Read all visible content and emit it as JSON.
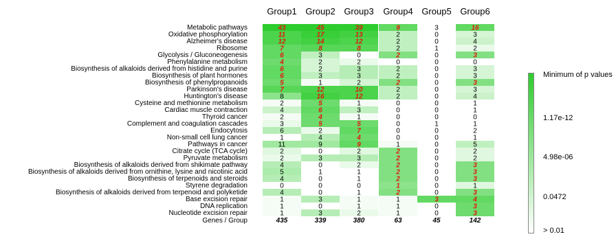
{
  "chart_data": {
    "type": "heatmap",
    "columns": [
      "Group1",
      "Group2",
      "Group3",
      "Group4",
      "Group5",
      "Group6"
    ],
    "rows": [
      {
        "label": "Metabolic pathways",
        "values": [
          43,
          45,
          39,
          9,
          3,
          16
        ],
        "significance": [
          1.0,
          1.0,
          1.0,
          0.75,
          0.0,
          0.75
        ],
        "highlight": [
          true,
          true,
          true,
          true,
          false,
          true
        ]
      },
      {
        "label": "Oxidative phosphorylation",
        "values": [
          11,
          17,
          13,
          2,
          0,
          3
        ],
        "significance": [
          0.85,
          0.95,
          0.9,
          0.3,
          0.0,
          0.2
        ],
        "highlight": [
          true,
          true,
          true,
          false,
          false,
          false
        ]
      },
      {
        "label": "Alzheimer's disease",
        "values": [
          12,
          14,
          12,
          2,
          0,
          4
        ],
        "significance": [
          0.85,
          0.9,
          0.85,
          0.3,
          0.0,
          0.25
        ],
        "highlight": [
          true,
          true,
          true,
          false,
          false,
          false
        ]
      },
      {
        "label": "Ribosome",
        "values": [
          7,
          8,
          8,
          2,
          1,
          2
        ],
        "significance": [
          0.75,
          0.8,
          0.8,
          0.3,
          0.0,
          0.1
        ],
        "highlight": [
          true,
          true,
          true,
          false,
          false,
          false
        ]
      },
      {
        "label": "Glycolysis / Gluconeogenesis",
        "values": [
          6,
          3,
          0,
          2,
          0,
          3
        ],
        "significance": [
          0.75,
          0.3,
          0.0,
          0.6,
          0.0,
          0.6
        ],
        "highlight": [
          true,
          false,
          false,
          true,
          false,
          true
        ]
      },
      {
        "label": "Phenylalanine metabolism",
        "values": [
          4,
          2,
          2,
          0,
          0,
          0
        ],
        "significance": [
          0.7,
          0.2,
          0.1,
          0.0,
          0.0,
          0.0
        ],
        "highlight": [
          true,
          false,
          false,
          false,
          false,
          false
        ]
      },
      {
        "label": "Biosynthesis of alkaloids derived from histidine and purine",
        "values": [
          6,
          2,
          3,
          2,
          0,
          3
        ],
        "significance": [
          0.75,
          0.2,
          0.35,
          0.3,
          0.0,
          0.2
        ],
        "highlight": [
          true,
          false,
          false,
          false,
          false,
          false
        ]
      },
      {
        "label": "Biosynthesis of plant hormones",
        "values": [
          6,
          3,
          3,
          2,
          0,
          3
        ],
        "significance": [
          0.75,
          0.3,
          0.35,
          0.3,
          0.0,
          0.2
        ],
        "highlight": [
          true,
          false,
          false,
          false,
          false,
          false
        ]
      },
      {
        "label": "Biosynthesis of phenylpropanoids",
        "values": [
          5,
          1,
          2,
          2,
          0,
          3
        ],
        "significance": [
          0.7,
          0.05,
          0.2,
          0.6,
          0.0,
          0.6
        ],
        "highlight": [
          true,
          false,
          false,
          true,
          false,
          true
        ]
      },
      {
        "label": "Parkinson's disease",
        "values": [
          7,
          12,
          10,
          2,
          0,
          3
        ],
        "significance": [
          0.8,
          0.85,
          0.85,
          0.3,
          0.0,
          0.2
        ],
        "highlight": [
          true,
          true,
          true,
          false,
          false,
          false
        ]
      },
      {
        "label": "Huntington's disease",
        "values": [
          8,
          16,
          12,
          2,
          0,
          4
        ],
        "significance": [
          0.55,
          0.9,
          0.85,
          0.3,
          0.0,
          0.25
        ],
        "highlight": [
          false,
          true,
          true,
          false,
          false,
          false
        ]
      },
      {
        "label": "Cysteine and methionine metabolism",
        "values": [
          2,
          5,
          1,
          0,
          0,
          1
        ],
        "significance": [
          0.05,
          0.7,
          0.05,
          0.0,
          0.0,
          0.0
        ],
        "highlight": [
          false,
          true,
          false,
          false,
          false,
          false
        ]
      },
      {
        "label": "Cardiac muscle contraction",
        "values": [
          4,
          6,
          3,
          0,
          0,
          1
        ],
        "significance": [
          0.25,
          0.75,
          0.3,
          0.0,
          0.0,
          0.0
        ],
        "highlight": [
          false,
          true,
          false,
          false,
          false,
          false
        ]
      },
      {
        "label": "Thyroid cancer",
        "values": [
          2,
          4,
          1,
          0,
          0,
          0
        ],
        "significance": [
          0.05,
          0.7,
          0.05,
          0.0,
          0.0,
          0.0
        ],
        "highlight": [
          false,
          true,
          false,
          false,
          false,
          false
        ]
      },
      {
        "label": "Complement and coagulation cascades",
        "values": [
          3,
          5,
          5,
          0,
          1,
          1
        ],
        "significance": [
          0.1,
          0.7,
          0.7,
          0.0,
          0.0,
          0.0
        ],
        "highlight": [
          false,
          true,
          true,
          false,
          false,
          false
        ]
      },
      {
        "label": "Endocytosis",
        "values": [
          6,
          2,
          7,
          0,
          0,
          2
        ],
        "significance": [
          0.35,
          0.1,
          0.75,
          0.0,
          0.0,
          0.0
        ],
        "highlight": [
          false,
          false,
          true,
          false,
          false,
          false
        ]
      },
      {
        "label": "Non-small cell lung cancer",
        "values": [
          1,
          4,
          4,
          0,
          0,
          1
        ],
        "significance": [
          0.0,
          0.35,
          0.7,
          0.0,
          0.0,
          0.0
        ],
        "highlight": [
          false,
          false,
          true,
          false,
          false,
          false
        ]
      },
      {
        "label": "Pathways in cancer",
        "values": [
          11,
          9,
          9,
          1,
          0,
          5
        ],
        "significance": [
          0.45,
          0.45,
          0.75,
          0.05,
          0.0,
          0.3
        ],
        "highlight": [
          false,
          false,
          true,
          false,
          false,
          false
        ]
      },
      {
        "label": "Citrate cycle (TCA cycle)",
        "values": [
          2,
          0,
          2,
          2,
          0,
          2
        ],
        "significance": [
          0.15,
          0.0,
          0.15,
          0.6,
          0.0,
          0.15
        ],
        "highlight": [
          false,
          false,
          false,
          true,
          false,
          false
        ]
      },
      {
        "label": "Pyruvate metabolism",
        "values": [
          2,
          3,
          3,
          2,
          0,
          2
        ],
        "significance": [
          0.1,
          0.35,
          0.35,
          0.6,
          0.0,
          0.15
        ],
        "highlight": [
          false,
          false,
          false,
          true,
          false,
          false
        ]
      },
      {
        "label": "Biosynthesis of alkaloids derived from shikimate pathway",
        "values": [
          4,
          0,
          2,
          2,
          0,
          3
        ],
        "significance": [
          0.35,
          0.0,
          0.1,
          0.6,
          0.0,
          0.6
        ],
        "highlight": [
          false,
          false,
          false,
          true,
          false,
          true
        ]
      },
      {
        "label": "Biosynthesis of alkaloids derived from ornithine, lysine and nicotinic acid",
        "values": [
          5,
          1,
          1,
          2,
          0,
          3
        ],
        "significance": [
          0.4,
          0.0,
          0.0,
          0.6,
          0.0,
          0.6
        ],
        "highlight": [
          false,
          false,
          false,
          true,
          false,
          true
        ]
      },
      {
        "label": "Biosynthesis of terpenoids and steroids",
        "values": [
          4,
          0,
          1,
          2,
          0,
          3
        ],
        "significance": [
          0.35,
          0.0,
          0.0,
          0.6,
          0.0,
          0.6
        ],
        "highlight": [
          false,
          false,
          false,
          true,
          false,
          true
        ]
      },
      {
        "label": "Styrene degradation",
        "values": [
          0,
          0,
          0,
          1,
          0,
          1
        ],
        "significance": [
          0.0,
          0.0,
          0.0,
          0.55,
          0.0,
          0.15
        ],
        "highlight": [
          false,
          false,
          false,
          true,
          false,
          false
        ]
      },
      {
        "label": "Biosynthesis of alkaloids derived from terpenoid and polyketide",
        "values": [
          4,
          0,
          1,
          2,
          0,
          3
        ],
        "significance": [
          0.35,
          0.0,
          0.0,
          0.6,
          0.0,
          0.6
        ],
        "highlight": [
          false,
          false,
          false,
          true,
          false,
          true
        ]
      },
      {
        "label": "Base excision repair",
        "values": [
          1,
          3,
          1,
          1,
          3,
          4
        ],
        "significance": [
          0.05,
          0.35,
          0.05,
          0.05,
          0.75,
          0.75
        ],
        "highlight": [
          false,
          false,
          false,
          false,
          true,
          true
        ]
      },
      {
        "label": "DNA replication",
        "values": [
          1,
          0,
          1,
          1,
          0,
          3
        ],
        "significance": [
          0.05,
          0.0,
          0.05,
          0.05,
          0.0,
          0.7
        ],
        "highlight": [
          false,
          false,
          false,
          false,
          false,
          true
        ]
      },
      {
        "label": "Nucleotide excision repair",
        "values": [
          1,
          3,
          2,
          1,
          0,
          3
        ],
        "significance": [
          0.05,
          0.35,
          0.1,
          0.05,
          0.0,
          0.7
        ],
        "highlight": [
          false,
          false,
          false,
          false,
          false,
          true
        ]
      }
    ],
    "totals_label": "Genes / Group",
    "totals": [
      435,
      339,
      380,
      63,
      45,
      142
    ],
    "colors": {
      "low": "#ffffff",
      "high": "#2ecc2e",
      "highlight_text": "#e0190f",
      "text": "#000000"
    },
    "legend": {
      "title": "Minimum of p values",
      "labels": [
        "1.17e-12",
        "4.98e-06",
        "0.0472",
        "> 0.01"
      ]
    }
  }
}
